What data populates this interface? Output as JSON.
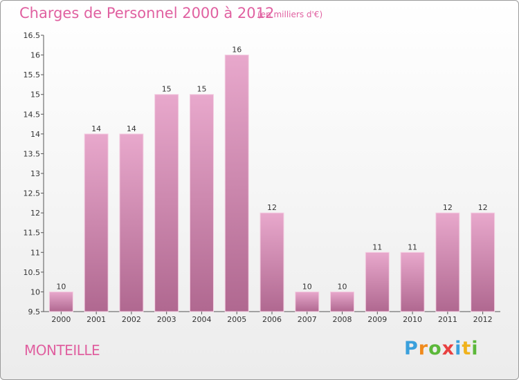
{
  "title": "Charges de Personnel 2000 à 2012",
  "subtitle": "(en milliers d'€)",
  "commune": "MONTEILLE",
  "logo": {
    "text": "Proxiti",
    "letters": [
      {
        "ch": "P",
        "color": "#3aa0dc"
      },
      {
        "ch": "r",
        "color": "#f08a1c"
      },
      {
        "ch": "o",
        "color": "#5cb83a"
      },
      {
        "ch": "x",
        "color": "#e84040"
      },
      {
        "ch": "i",
        "color": "#3aa0dc"
      },
      {
        "ch": "t",
        "color": "#f0b21c"
      },
      {
        "ch": "i",
        "color": "#5cb83a"
      }
    ]
  },
  "colors": {
    "bar_top": "#e8a8cc",
    "bar_bottom": "#b06890",
    "accent": "#e060a0"
  },
  "chart_data": {
    "type": "bar",
    "categories": [
      "2000",
      "2001",
      "2002",
      "2003",
      "2004",
      "2005",
      "2006",
      "2007",
      "2008",
      "2009",
      "2010",
      "2011",
      "2012"
    ],
    "values": [
      10,
      14,
      14,
      15,
      15,
      16,
      12,
      10,
      10,
      11,
      11,
      12,
      12
    ],
    "data_labels": [
      "10",
      "14",
      "14",
      "15",
      "15",
      "16",
      "12",
      "10",
      "10",
      "11",
      "11",
      "12",
      "12"
    ],
    "title": "Charges de Personnel 2000 à 2012",
    "xlabel": "",
    "ylabel": "",
    "ylim": [
      9.5,
      16.5
    ],
    "yticks": [
      9.5,
      10,
      10.5,
      11,
      11.5,
      12,
      12.5,
      13,
      13.5,
      14,
      14.5,
      15,
      15.5,
      16,
      16.5
    ],
    "ytick_labels": [
      "9.5",
      "10",
      "10.5",
      "11",
      "11.5",
      "12",
      "12.5",
      "13",
      "13.5",
      "14",
      "14.5",
      "15",
      "15.5",
      "16",
      "16.5"
    ],
    "grid": false,
    "legend": "none"
  }
}
